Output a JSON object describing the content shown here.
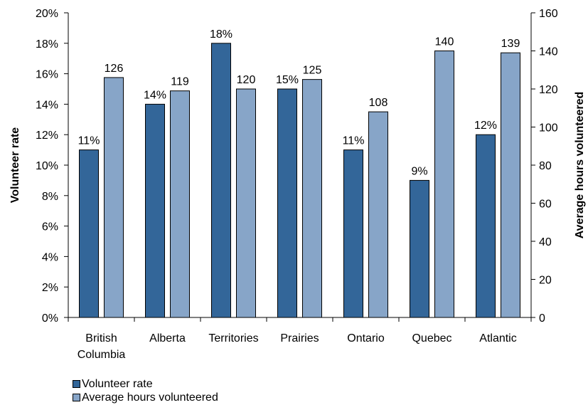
{
  "chart_data": {
    "type": "bar",
    "categories": [
      [
        "British",
        "Columbia"
      ],
      [
        "Alberta"
      ],
      [
        "Territories"
      ],
      [
        "Prairies"
      ],
      [
        "Ontario"
      ],
      [
        "Quebec"
      ],
      [
        "Atlantic"
      ]
    ],
    "series": [
      {
        "name": "Volunteer rate",
        "axis": "left",
        "values": [
          11,
          14,
          18,
          15,
          11,
          9,
          12
        ],
        "labels": [
          "11%",
          "14%",
          "18%",
          "15%",
          "11%",
          "9%",
          "12%"
        ],
        "color": "#336699"
      },
      {
        "name": "Average hours volunteered",
        "axis": "right",
        "values": [
          126,
          119,
          120,
          125,
          108,
          140,
          139
        ],
        "labels": [
          "126",
          "119",
          "120",
          "125",
          "108",
          "140",
          "139"
        ],
        "color": "#87a5c8"
      }
    ],
    "y_left": {
      "label": "Volunteer rate",
      "range": [
        0,
        20
      ],
      "ticks": [
        "0%",
        "2%",
        "4%",
        "6%",
        "8%",
        "10%",
        "12%",
        "14%",
        "16%",
        "18%",
        "20%"
      ]
    },
    "y_right": {
      "label": "Average hours volunteered",
      "range": [
        0,
        160
      ],
      "ticks": [
        "0",
        "20",
        "40",
        "60",
        "80",
        "100",
        "120",
        "140",
        "160"
      ]
    },
    "grid": false,
    "legend_position": "bottom-left"
  }
}
